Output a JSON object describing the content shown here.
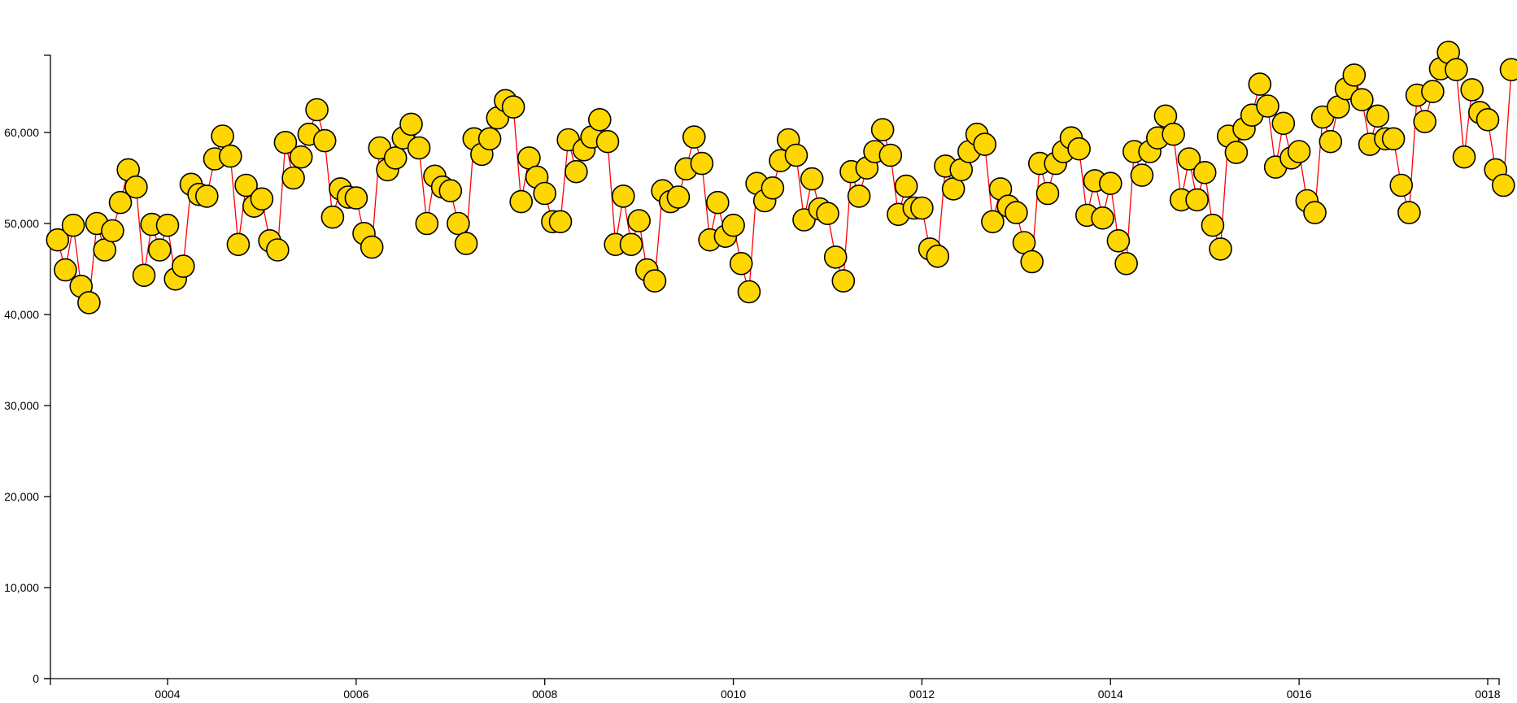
{
  "chart_data": {
    "type": "line",
    "title": "",
    "xlabel": "",
    "ylabel": "",
    "x_start": "0002-11",
    "x_interval": "month",
    "xlim": [
      "0002-11",
      "0018-02"
    ],
    "ylim": [
      0,
      70000
    ],
    "x_ticks": [
      "0004",
      "0006",
      "0008",
      "0010",
      "0012",
      "0014",
      "0016",
      "0018"
    ],
    "y_ticks": [
      0,
      10000,
      20000,
      30000,
      40000,
      50000,
      60000
    ],
    "y_tick_labels": [
      "0",
      "10,000",
      "20,000",
      "30,000",
      "40,000",
      "50,000",
      "60,000"
    ],
    "grid": false,
    "legend": "none",
    "line_color": "#ff0000",
    "marker_color": "#ffd700",
    "marker_stroke": "#000000",
    "values": [
      48200,
      44900,
      49800,
      43100,
      41300,
      50000,
      47100,
      49200,
      52300,
      55900,
      54000,
      44300,
      49900,
      47100,
      49800,
      43900,
      45300,
      54300,
      53200,
      53000,
      57100,
      59600,
      57400,
      47700,
      54200,
      51900,
      52700,
      48100,
      47100,
      58900,
      55000,
      57300,
      59800,
      62500,
      59100,
      50700,
      53800,
      52900,
      52800,
      48900,
      47400,
      58300,
      55900,
      57200,
      59400,
      60900,
      58300,
      50000,
      55200,
      54000,
      53600,
      50000,
      47800,
      59300,
      57600,
      59300,
      61600,
      63500,
      62800,
      52400,
      57200,
      55100,
      53300,
      50200,
      50200,
      59200,
      55700,
      58100,
      59500,
      61400,
      59000,
      47700,
      53000,
      47700,
      50300,
      44900,
      43700,
      53600,
      52400,
      52900,
      56000,
      59500,
      56600,
      48200,
      52300,
      48600,
      49800,
      45600,
      42500,
      54400,
      52500,
      53900,
      56900,
      59200,
      57500,
      50400,
      54900,
      51600,
      51100,
      46300,
      43700,
      55700,
      53000,
      56100,
      57900,
      60300,
      57500,
      51000,
      54100,
      51700,
      51700,
      47200,
      46400,
      56300,
      53800,
      55900,
      57900,
      59800,
      58700,
      50200,
      53800,
      51900,
      51200,
      47900,
      45800,
      56600,
      53300,
      56600,
      57900,
      59400,
      58200,
      50900,
      54700,
      50600,
      54400,
      48100,
      45600,
      57900,
      55300,
      57900,
      59400,
      61800,
      59800,
      52600,
      57100,
      52600,
      55600,
      49800,
      47200,
      59600,
      57800,
      60400,
      61900,
      65300,
      62900,
      56200,
      61000,
      57200,
      57900,
      52500,
      51200,
      61700,
      59000,
      62800,
      64800,
      66300,
      63600,
      58700,
      61800,
      59300,
      59300,
      54200,
      51200,
      64100,
      61200,
      64500,
      67000,
      68800,
      66900,
      57300,
      64700,
      62200,
      61400,
      55900,
      54200,
      66900
    ]
  }
}
